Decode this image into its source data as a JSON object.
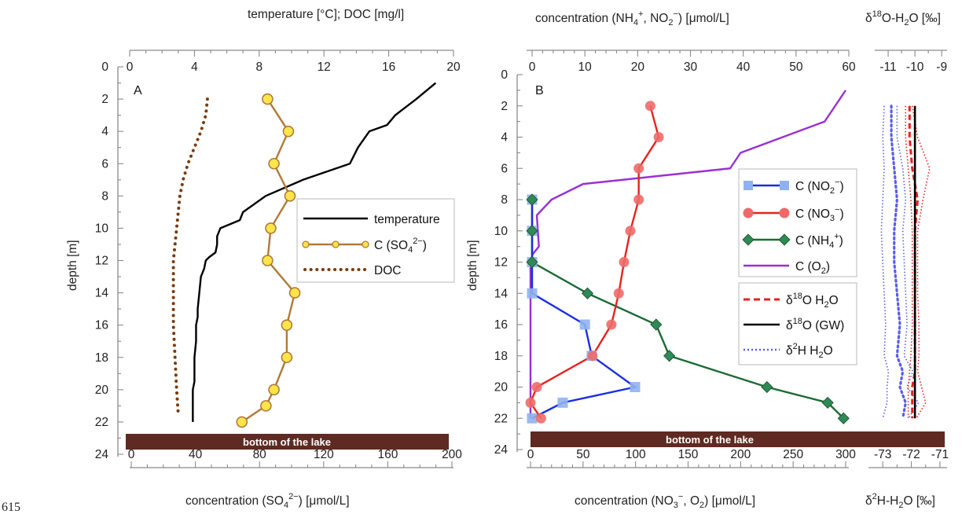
{
  "page_number": "615",
  "chart_data": [
    {
      "type": "line",
      "panel": "A",
      "left_axis": {
        "label": "depth [m]",
        "ticks": [
          "0",
          "2",
          "4",
          "6",
          "8",
          "10",
          "12",
          "14",
          "16",
          "18",
          "20",
          "22",
          "24"
        ],
        "range": [
          0,
          24
        ],
        "reversed": true
      },
      "top_axis": {
        "label": "temperature [°C]; DOC [mg/l]",
        "ticks": [
          "0",
          "4",
          "8",
          "12",
          "16",
          "20"
        ],
        "range": [
          0,
          20
        ]
      },
      "bottom_axis": {
        "label_main": "concentration (SO",
        "label_sub": "4",
        "label_sup": "2−",
        "label_end": ") [μmol/L]",
        "ticks": [
          "0",
          "40",
          "80",
          "120",
          "160",
          "200"
        ],
        "range": [
          0,
          200
        ]
      },
      "bottom_bar_label": "bottom of the lake",
      "legend": {
        "position": "right",
        "entries": [
          {
            "text": "temperature"
          },
          {
            "main": "C (SO",
            "sub": "4",
            "sup": "2−",
            "end": ")"
          },
          {
            "text": "DOC"
          }
        ]
      },
      "series": [
        {
          "key": "temperature",
          "axis": "top",
          "color": "#000000",
          "style": "solid",
          "x": [
            18.9,
            17.7,
            16.4,
            15.9,
            14.8,
            14.1,
            13.6,
            10.7,
            8.4,
            7.0,
            6.8,
            5.6,
            5.4,
            5.4,
            5.3,
            4.9,
            4.7,
            4.6,
            4.4,
            4.3,
            4.2,
            4.2,
            4.1,
            4.1,
            4.0,
            4.0,
            4.0,
            4.0,
            3.9,
            3.9,
            3.9,
            3.9
          ],
          "y": [
            1,
            2,
            3,
            3.6,
            4,
            5,
            6,
            7,
            8,
            9,
            9.5,
            10,
            10.5,
            11,
            11.5,
            11.8,
            12,
            12.5,
            13,
            14,
            15,
            15.5,
            16,
            17,
            18,
            18.5,
            19,
            19.5,
            20,
            20.5,
            21,
            22
          ]
        },
        {
          "key": "DOC",
          "axis": "top",
          "color": "#7a3b0a",
          "style": "dotted",
          "x": [
            4.8,
            4.7,
            4.4,
            4.0,
            3.6,
            3.3,
            3.1,
            3.0,
            2.9,
            2.8,
            2.7,
            2.7,
            2.7,
            2.7,
            2.7,
            2.8,
            2.9,
            3.0
          ],
          "y": [
            2,
            3,
            4,
            5,
            6,
            7,
            8,
            9,
            10,
            11,
            12,
            13,
            14,
            15,
            16,
            18,
            20,
            21.5
          ]
        },
        {
          "key": "SO4",
          "axis": "bottom",
          "color": "#b07a3a",
          "marker_fill": "#ffe54a",
          "style": "solid-marker",
          "x": [
            85,
            98,
            89,
            99,
            87,
            85,
            102,
            97,
            97,
            89,
            84,
            69
          ],
          "y": [
            2,
            4,
            6,
            8,
            10,
            12,
            14,
            16,
            18,
            20,
            21,
            22
          ]
        }
      ]
    },
    {
      "type": "line",
      "panel": "B",
      "left_axis": {
        "label": "depth [m]",
        "ticks": [
          "0",
          "2",
          "4",
          "6",
          "8",
          "10",
          "12",
          "14",
          "16",
          "18",
          "20",
          "22",
          "24"
        ],
        "range": [
          0,
          24
        ],
        "reversed": true
      },
      "top_axis": {
        "label_parts": [
          "concentration (NH",
          "4",
          "+",
          ", NO",
          "2",
          "−",
          ") [μmol/L]"
        ],
        "ticks": [
          "0",
          "10",
          "20",
          "30",
          "40",
          "50",
          "60"
        ],
        "range": [
          0,
          60
        ]
      },
      "bottom_axis": {
        "label_parts": [
          "concentration (NO",
          "3",
          "−",
          ", O",
          "2",
          ") [μmol/L]"
        ],
        "ticks": [
          "0",
          "50",
          "100",
          "150",
          "200",
          "250",
          "300"
        ],
        "range": [
          0,
          300
        ]
      },
      "bottom_bar_label": "bottom of the lake",
      "legend": {
        "position": "right",
        "entries": [
          {
            "main": "C (NO",
            "sub": "2",
            "sup": "−",
            "end": ")"
          },
          {
            "main": "C (NO",
            "sub": "3",
            "sup": "−",
            "end": ")"
          },
          {
            "main": "C (NH",
            "sub": "4",
            "sup": "+",
            "end": ")"
          },
          {
            "main": "C (O",
            "sub": "2",
            "end": ")"
          },
          {
            "pre": "δ",
            "sup": "18",
            "end": "O H",
            "sub2": "2",
            "end2": "O"
          },
          {
            "pre": "δ",
            "sup": "18",
            "end": "O (GW)"
          },
          {
            "pre": "δ",
            "sup": "2",
            "end": "H H",
            "sub2": "2",
            "end2": "O"
          }
        ]
      },
      "series": [
        {
          "key": "NO2",
          "axis": "top",
          "color": "#1a2ee0",
          "marker_fill": "#8fb2ef",
          "x": [
            0,
            0,
            0,
            0,
            10,
            11.3,
            19.5,
            5.8,
            0
          ],
          "y": [
            8,
            10,
            12,
            14,
            16,
            18,
            20,
            21,
            22
          ]
        },
        {
          "key": "NO3",
          "axis": "bottom",
          "color": "#e8211d",
          "marker_fill": "#ee6a6a",
          "x": [
            114,
            122,
            103,
            103,
            95,
            89,
            84,
            77,
            59,
            6,
            0,
            10
          ],
          "y": [
            2,
            4,
            6,
            8,
            10,
            12,
            14,
            16,
            18,
            20,
            21,
            22
          ]
        },
        {
          "key": "NH4",
          "axis": "top",
          "color": "#1c6b34",
          "marker_fill": "#2f8a55",
          "x": [
            0,
            0,
            0,
            10.5,
            23.5,
            26,
            44.5,
            56,
            59
          ],
          "y": [
            8,
            10,
            12,
            14,
            16,
            18,
            20,
            21,
            22
          ]
        },
        {
          "key": "O2",
          "axis": "bottom",
          "color": "#9a2fd0",
          "x": [
            300,
            290,
            280,
            240,
            200,
            190,
            50,
            20,
            6,
            8,
            2,
            0,
            0,
            0,
            0,
            0
          ],
          "y": [
            1,
            2,
            3,
            4,
            5,
            6,
            7,
            8,
            9,
            11,
            11.5,
            12,
            14,
            16,
            18,
            22
          ]
        }
      ]
    },
    {
      "type": "line",
      "panel": "isotopes",
      "top_axis": {
        "label_parts": [
          "δ",
          "18",
          "O-H",
          "2",
          "O [‰]"
        ],
        "ticks": [
          "-11",
          "-10",
          "-9"
        ],
        "range": [
          -11.5,
          -8.8
        ]
      },
      "bottom_axis": {
        "label_parts": [
          "δ",
          "2",
          "H-H",
          "2",
          "O [‰]"
        ],
        "ticks": [
          "-73",
          "-72",
          "-71"
        ],
        "range": [
          -73.5,
          -70.75
        ]
      },
      "series": [
        {
          "key": "d18O_H2O",
          "axis": "top",
          "color": "#e8211d",
          "style": "dashed",
          "x": [
            -10.2,
            -10.2,
            -10.1,
            -9.9,
            -10.0,
            -10.0,
            -10.0,
            -10.0,
            -10.0,
            -10.0,
            -10.1,
            -10.1,
            -10.1
          ],
          "y": [
            2,
            4,
            6,
            8,
            10,
            12,
            14,
            16,
            18,
            19,
            20,
            21,
            22
          ]
        },
        {
          "key": "d18O_H2O_envelope",
          "axis": "top",
          "color": "#e8211d",
          "style": "dotted",
          "lower": [
            -10.35,
            -10.35,
            -10.25,
            -10.15,
            -10.1,
            -10.1,
            -10.1,
            -10.1,
            -10.15,
            -10.2,
            -10.25,
            -10.25,
            -10.25
          ],
          "upper": [
            -10.1,
            -9.9,
            -9.45,
            -9.7,
            -9.9,
            -9.9,
            -9.9,
            -9.85,
            -9.85,
            -9.9,
            -9.75,
            -9.6,
            -9.95
          ],
          "y": [
            2,
            4,
            6,
            8,
            10,
            12,
            14,
            16,
            18,
            19,
            20,
            21,
            22
          ]
        },
        {
          "key": "d18O_GW",
          "axis": "top",
          "color": "#000000",
          "style": "solid",
          "x": [
            -10.0,
            -10.0
          ],
          "y": [
            2,
            22
          ]
        },
        {
          "key": "d2H_H2O",
          "axis": "bottom",
          "color": "#5a5cf0",
          "style": "dotted",
          "x": [
            -72.7,
            -72.7,
            -72.6,
            -72.5,
            -72.6,
            -72.6,
            -72.5,
            -72.4,
            -72.5,
            -72.3,
            -72.4,
            -72.2,
            -72.3
          ],
          "lower": [
            -72.95,
            -73.0,
            -72.95,
            -73.0,
            -73.05,
            -73.0,
            -72.95,
            -72.9,
            -72.95,
            -72.8,
            -72.85,
            -72.85,
            -73.0
          ],
          "upper": [
            -72.5,
            -72.5,
            -72.3,
            -72.2,
            -72.3,
            -72.25,
            -72.2,
            -72.15,
            -72.25,
            -71.95,
            -72.15,
            -71.75,
            -72.1
          ],
          "y": [
            2,
            4,
            6,
            8,
            10,
            12,
            14,
            16,
            18,
            19,
            20,
            21,
            22
          ]
        }
      ]
    }
  ]
}
